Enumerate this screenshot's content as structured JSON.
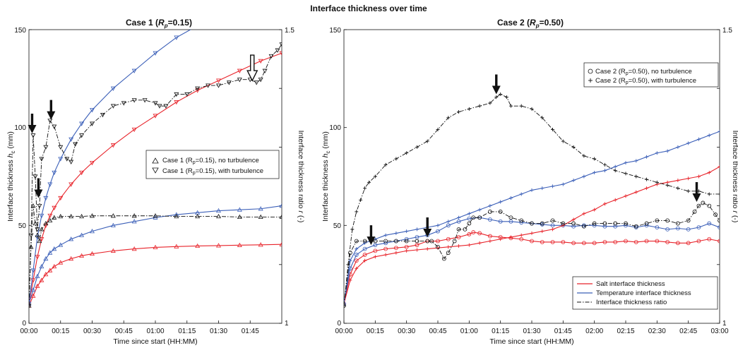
{
  "figure": {
    "title": "Interface thickness over time"
  },
  "colors": {
    "salt": "#e8232a",
    "temperature": "#3b5fb8",
    "ratio": "#111111",
    "arrow": "#111111"
  },
  "icons": {
    "annotation_arrow": "down-arrow-icon",
    "hollow_annotation_arrow": "hollow-down-arrow-icon"
  },
  "chart_data": [
    {
      "type": "line",
      "title_main": "Case 1 (",
      "title_symbol": "R",
      "title_sub": "p",
      "title_tail": "=0.15)",
      "xlabel": "Time since start (HH:MM)",
      "ylabel_main": "Interface thickness ",
      "ylabel_symbol": "h",
      "ylabel_sub": "c",
      "ylabel_unit": " (mm)",
      "y2label_main": "Interface thickness ratio ",
      "y2label_symbol": "r",
      "y2label_unit": " (-)",
      "xlim": [
        0,
        120
      ],
      "ylim": [
        0,
        150
      ],
      "y2lim": [
        1,
        1.5
      ],
      "x_ticks": [
        0,
        15,
        30,
        45,
        60,
        75,
        90,
        105
      ],
      "x_tick_labels": [
        "00:00",
        "00:15",
        "00:30",
        "00:45",
        "01:00",
        "01:15",
        "01:30",
        "01:45"
      ],
      "y_ticks": [
        0,
        50,
        100,
        150
      ],
      "y_tick_labels": [
        "0",
        "50",
        "100",
        "150"
      ],
      "y2_ticks": [
        1,
        1.5
      ],
      "y2_tick_labels": [
        "1",
        "1.5"
      ],
      "legend": {
        "position": "center-right",
        "entries": [
          {
            "marker": "triangle-up",
            "main": "Case 1 (R",
            "sub": "p",
            "tail": "=0.15), no turbulence"
          },
          {
            "marker": "triangle-down",
            "main": "Case 1 (R",
            "sub": "p",
            "tail": "=0.15), with turbulence"
          }
        ]
      },
      "series": [
        {
          "color": "salt",
          "marker": "triangle-up",
          "axis": "left",
          "x": [
            0,
            2,
            4,
            6,
            8,
            10,
            12,
            15,
            20,
            25,
            30,
            40,
            50,
            60,
            70,
            80,
            90,
            100,
            110,
            120
          ],
          "y": [
            9,
            14,
            19,
            22,
            25,
            27,
            29,
            31,
            33,
            34.5,
            35.5,
            37,
            38,
            38.8,
            39.2,
            39.5,
            39.7,
            39.9,
            40.1,
            40.3
          ]
        },
        {
          "color": "temperature",
          "marker": "triangle-up",
          "axis": "left",
          "x": [
            0,
            2,
            4,
            6,
            8,
            10,
            12,
            15,
            20,
            25,
            30,
            40,
            50,
            60,
            70,
            80,
            90,
            100,
            110,
            120
          ],
          "y": [
            10,
            17,
            24,
            29,
            33,
            36,
            38,
            40,
            43,
            45,
            47,
            50,
            52,
            54,
            55.5,
            56.5,
            57.5,
            58,
            58.5,
            60
          ]
        },
        {
          "color": "salt",
          "marker": "triangle-down",
          "axis": "left",
          "x": [
            0,
            2,
            4,
            6,
            8,
            10,
            12,
            15,
            20,
            25,
            30,
            40,
            50,
            60,
            70,
            80,
            90,
            100,
            110,
            120
          ],
          "y": [
            10,
            22,
            34,
            43,
            50,
            55,
            59,
            64,
            71,
            77,
            82,
            91,
            99,
            106,
            113,
            119,
            124,
            129,
            134,
            138
          ]
        },
        {
          "color": "temperature",
          "marker": "triangle-down",
          "axis": "left",
          "x": [
            0,
            2,
            4,
            6,
            8,
            10,
            12,
            15,
            20,
            25,
            30,
            40,
            50,
            60,
            70,
            80,
            90,
            100,
            110,
            120
          ],
          "y": [
            10,
            27,
            44,
            55,
            64,
            71,
            77,
            84,
            94,
            102,
            109,
            120,
            129,
            138,
            146,
            152,
            158,
            163,
            168,
            172
          ]
        },
        {
          "color": "ratio",
          "marker": "triangle-up",
          "axis": "right",
          "x": [
            0,
            1,
            2,
            3,
            4,
            5,
            6,
            8,
            10,
            12,
            15,
            20,
            25,
            30,
            40,
            50,
            60,
            70,
            80,
            90,
            100,
            110,
            120
          ],
          "y": [
            1.03,
            1.13,
            1.2,
            1.17,
            1.15,
            1.14,
            1.16,
            1.17,
            1.175,
            1.18,
            1.182,
            1.182,
            1.182,
            1.183,
            1.183,
            1.183,
            1.183,
            1.182,
            1.182,
            1.182,
            1.181,
            1.181,
            1.181
          ]
        },
        {
          "color": "ratio",
          "marker": "triangle-down",
          "axis": "right",
          "x": [
            0,
            1,
            2,
            3,
            4,
            5,
            6,
            8,
            10,
            12,
            15,
            18,
            20,
            22,
            25,
            30,
            35,
            40,
            45,
            50,
            55,
            60,
            62,
            65,
            70,
            75,
            80,
            85,
            90,
            95,
            100,
            105,
            108,
            110,
            112,
            115,
            118,
            120
          ],
          "y": [
            1.03,
            1.15,
            1.32,
            1.25,
            1.16,
            1.2,
            1.28,
            1.3,
            1.345,
            1.335,
            1.3,
            1.28,
            1.275,
            1.305,
            1.32,
            1.34,
            1.355,
            1.37,
            1.375,
            1.38,
            1.38,
            1.375,
            1.37,
            1.37,
            1.39,
            1.39,
            1.4,
            1.405,
            1.405,
            1.41,
            1.415,
            1.415,
            1.41,
            1.415,
            1.43,
            1.455,
            1.465,
            1.475
          ]
        }
      ],
      "annotations": [
        {
          "type": "arrow",
          "x": 1.5,
          "y": 97,
          "style": "solid"
        },
        {
          "type": "arrow",
          "x": 4.5,
          "y": 64,
          "style": "solid"
        },
        {
          "type": "arrow",
          "x": 10.5,
          "y": 104,
          "style": "solid"
        },
        {
          "type": "arrow",
          "x": 106,
          "y": 124,
          "style": "hollow"
        }
      ]
    },
    {
      "type": "line",
      "title_main": "Case 2 (",
      "title_symbol": "R",
      "title_sub": "p",
      "title_tail": "=0.50)",
      "xlabel": "Time since start (HH:MM)",
      "ylabel_main": "Interface thickness ",
      "ylabel_symbol": "h",
      "ylabel_sub": "c",
      "ylabel_unit": " (mm)",
      "y2label_main": "Interface thickness ratio ",
      "y2label_symbol": "r",
      "y2label_unit": " (-)",
      "xlim": [
        0,
        180
      ],
      "ylim": [
        0,
        150
      ],
      "y2lim": [
        1,
        1.5
      ],
      "x_ticks": [
        0,
        15,
        30,
        45,
        60,
        75,
        90,
        105,
        120,
        135,
        150,
        165,
        180
      ],
      "x_tick_labels": [
        "00:00",
        "00:15",
        "00:30",
        "00:45",
        "01:00",
        "01:15",
        "01:30",
        "01:45",
        "02:00",
        "02:15",
        "02:30",
        "02:45",
        "03:00"
      ],
      "y_ticks": [
        0,
        50,
        100,
        150
      ],
      "y_tick_labels": [
        "0",
        "50",
        "100",
        "150"
      ],
      "y2_ticks": [
        1,
        1.5
      ],
      "y2_tick_labels": [
        "1",
        "1.5"
      ],
      "legend": {
        "position": "top-right",
        "entries": [
          {
            "marker": "circle",
            "main": "Case 2 (R",
            "sub": "p",
            "tail": "=0.50), no turbulence"
          },
          {
            "marker": "plus",
            "main": "Case 2 (R",
            "sub": "p",
            "tail": "=0.50), with turbulence"
          }
        ]
      },
      "legend2": {
        "position": "bottom-right",
        "entries": [
          {
            "color": "salt",
            "dash": "solid",
            "label": "Salt interface thickness"
          },
          {
            "color": "temperature",
            "dash": "solid",
            "label": "Temperature interface thickness"
          },
          {
            "color": "ratio",
            "dash": "dashdot",
            "label": "Interface thickness ratio"
          }
        ]
      },
      "series": [
        {
          "color": "salt",
          "marker": "circle",
          "axis": "left",
          "x": [
            0,
            3,
            6,
            10,
            15,
            20,
            25,
            30,
            35,
            40,
            45,
            50,
            55,
            60,
            62,
            65,
            70,
            75,
            80,
            85,
            90,
            95,
            100,
            105,
            110,
            115,
            120,
            125,
            130,
            135,
            140,
            145,
            150,
            155,
            160,
            165,
            170,
            175,
            180
          ],
          "y": [
            10,
            25,
            32,
            35,
            37,
            38,
            38.5,
            39,
            40,
            42,
            42,
            43,
            44,
            45.5,
            46.5,
            46,
            44.5,
            44,
            43.5,
            43,
            42,
            41.5,
            41.5,
            41.5,
            41,
            41,
            41,
            41.5,
            41.5,
            42,
            41.5,
            42,
            42,
            41.5,
            41,
            41,
            42,
            43,
            42
          ]
        },
        {
          "color": "temperature",
          "marker": "circle",
          "axis": "left",
          "x": [
            0,
            3,
            6,
            10,
            15,
            20,
            25,
            30,
            35,
            40,
            45,
            50,
            55,
            60,
            65,
            70,
            75,
            80,
            85,
            90,
            95,
            100,
            105,
            110,
            115,
            120,
            125,
            130,
            135,
            140,
            145,
            150,
            155,
            160,
            165,
            170,
            175,
            180
          ],
          "y": [
            10,
            28,
            35,
            38,
            40,
            41,
            42,
            43,
            44,
            45,
            47,
            50,
            52,
            53.5,
            54,
            53,
            52,
            52,
            51.5,
            51,
            50.5,
            50,
            50,
            49.5,
            50,
            50,
            49.5,
            49.5,
            50,
            49,
            50,
            49,
            48,
            48.5,
            48,
            49,
            51,
            49
          ]
        },
        {
          "color": "salt",
          "marker": "plus",
          "axis": "left",
          "x": [
            0,
            3,
            6,
            10,
            15,
            20,
            25,
            30,
            35,
            40,
            45,
            50,
            55,
            60,
            65,
            70,
            75,
            80,
            85,
            90,
            95,
            100,
            105,
            110,
            115,
            120,
            125,
            130,
            135,
            140,
            145,
            150,
            155,
            160,
            165,
            170,
            175,
            180
          ],
          "y": [
            10,
            22,
            28,
            32,
            34,
            35,
            36,
            37,
            37.5,
            38,
            38.5,
            39,
            39.5,
            40,
            41,
            42,
            43,
            44,
            45,
            46,
            47,
            48,
            50,
            53,
            56,
            58,
            61,
            63,
            65,
            67,
            69,
            71,
            72,
            73,
            74,
            75,
            77,
            80
          ]
        },
        {
          "color": "temperature",
          "marker": "plus",
          "axis": "left",
          "x": [
            0,
            3,
            6,
            10,
            15,
            20,
            25,
            30,
            35,
            40,
            45,
            50,
            55,
            60,
            65,
            70,
            75,
            80,
            85,
            90,
            95,
            100,
            105,
            110,
            115,
            120,
            125,
            130,
            135,
            140,
            145,
            150,
            155,
            160,
            165,
            170,
            175,
            180
          ],
          "y": [
            10,
            32,
            38,
            41,
            43,
            45,
            46,
            47,
            48,
            49,
            50,
            52,
            54,
            56,
            58,
            60,
            62,
            64,
            66,
            68,
            69,
            70,
            71,
            73,
            75,
            77,
            78,
            80,
            82,
            83,
            85,
            87,
            88,
            90,
            92,
            94,
            96,
            98
          ]
        },
        {
          "color": "ratio",
          "marker": "circle",
          "axis": "right",
          "x": [
            0,
            3,
            6,
            10,
            15,
            20,
            25,
            30,
            35,
            40,
            42,
            45,
            48,
            50,
            53,
            55,
            58,
            60,
            62,
            65,
            70,
            75,
            80,
            85,
            90,
            95,
            100,
            105,
            110,
            115,
            120,
            125,
            130,
            135,
            140,
            145,
            150,
            155,
            160,
            165,
            168,
            170,
            172,
            175,
            178,
            180
          ],
          "y": [
            1.03,
            1.12,
            1.14,
            1.14,
            1.14,
            1.14,
            1.14,
            1.14,
            1.14,
            1.14,
            1.14,
            1.13,
            1.11,
            1.12,
            1.14,
            1.16,
            1.16,
            1.17,
            1.18,
            1.18,
            1.19,
            1.19,
            1.18,
            1.175,
            1.17,
            1.17,
            1.175,
            1.17,
            1.17,
            1.165,
            1.17,
            1.17,
            1.17,
            1.17,
            1.165,
            1.17,
            1.175,
            1.175,
            1.17,
            1.175,
            1.19,
            1.2,
            1.205,
            1.2,
            1.185,
            1.175
          ]
        },
        {
          "color": "ratio",
          "marker": "plus",
          "axis": "right",
          "x": [
            0,
            2,
            4,
            6,
            8,
            10,
            12,
            15,
            20,
            25,
            30,
            35,
            40,
            45,
            50,
            55,
            60,
            65,
            70,
            73,
            75,
            78,
            80,
            85,
            90,
            95,
            100,
            105,
            110,
            115,
            120,
            125,
            130,
            135,
            140,
            145,
            150,
            155,
            160,
            165,
            170,
            175,
            180
          ],
          "y": [
            1.03,
            1.1,
            1.16,
            1.19,
            1.21,
            1.23,
            1.24,
            1.25,
            1.27,
            1.28,
            1.29,
            1.3,
            1.31,
            1.33,
            1.35,
            1.36,
            1.365,
            1.37,
            1.375,
            1.385,
            1.39,
            1.385,
            1.37,
            1.37,
            1.365,
            1.35,
            1.33,
            1.31,
            1.3,
            1.285,
            1.28,
            1.27,
            1.26,
            1.255,
            1.25,
            1.245,
            1.24,
            1.235,
            1.23,
            1.225,
            1.225,
            1.22,
            1.22
          ]
        }
      ],
      "annotations": [
        {
          "type": "arrow",
          "x": 13,
          "y": 40,
          "style": "solid"
        },
        {
          "type": "arrow",
          "x": 40,
          "y": 44,
          "style": "solid"
        },
        {
          "type": "arrow",
          "x": 73,
          "y": 117,
          "style": "solid"
        },
        {
          "type": "arrow",
          "x": 169,
          "y": 62,
          "style": "solid"
        }
      ]
    }
  ]
}
